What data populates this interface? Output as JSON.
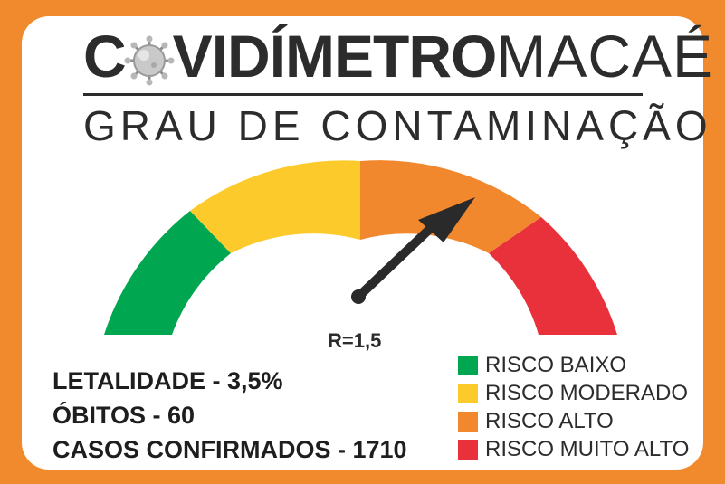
{
  "header": {
    "title_bold_start": "C",
    "title_bold_rest": "VIDÍMETRO",
    "title_light": "MACAÉ",
    "subtitle": "GRAU DE CONTAMINAÇÃO"
  },
  "gauge": {
    "r_label": "R=1,5",
    "r_value": 1.5,
    "colors": {
      "baixo": "#00a650",
      "moderado": "#fdca2c",
      "alto": "#f2882d",
      "muito_alto": "#e8313a"
    }
  },
  "stats": {
    "letalidade": "LETALIDADE - 3,5%",
    "obitos": "ÓBITOS - 60",
    "casos": "CASOS CONFIRMADOS - 1710"
  },
  "legend": [
    {
      "label": "RISCO BAIXO",
      "color": "#00a650"
    },
    {
      "label": "RISCO MODERADO",
      "color": "#fdca2c"
    },
    {
      "label": "RISCO ALTO",
      "color": "#f2882d"
    },
    {
      "label": "RISCO MUITO ALTO",
      "color": "#e8313a"
    }
  ]
}
